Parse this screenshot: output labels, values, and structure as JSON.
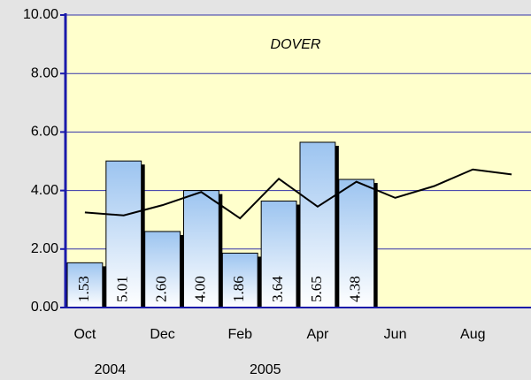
{
  "chart_data": {
    "type": "bar-line",
    "title": "DOVER",
    "categories": [
      "Oct",
      null,
      "Dec",
      null,
      "Feb",
      null,
      "Apr",
      null,
      "Jun",
      null,
      "Aug",
      null
    ],
    "year_labels": [
      null,
      "2004",
      null,
      null,
      null,
      "2005",
      null,
      null,
      null,
      null,
      null,
      null
    ],
    "series": [
      {
        "type": "bar",
        "color": "#9cc4f0",
        "values": [
          1.53,
          5.01,
          2.6,
          4.0,
          1.86,
          3.64,
          5.65,
          4.38,
          null,
          null,
          null,
          null
        ],
        "value_labels": [
          "1.53",
          "5.01",
          "2.60",
          "4.00",
          "1.86",
          "3.64",
          "5.65",
          "4.38",
          null,
          null,
          null,
          null
        ]
      },
      {
        "type": "line",
        "color": "#000000",
        "values": [
          3.25,
          3.15,
          3.5,
          3.95,
          3.05,
          4.4,
          3.45,
          4.3,
          3.75,
          4.15,
          4.72,
          4.55
        ]
      }
    ],
    "ylim": [
      0,
      10
    ],
    "yticks": [
      {
        "value": 0,
        "label": "0.00"
      },
      {
        "value": 2,
        "label": "2.00"
      },
      {
        "value": 4,
        "label": "4.00"
      },
      {
        "value": 6,
        "label": "6.00"
      },
      {
        "value": 8,
        "label": "8.00"
      },
      {
        "value": 10,
        "label": "10.00"
      }
    ],
    "grid": true
  }
}
